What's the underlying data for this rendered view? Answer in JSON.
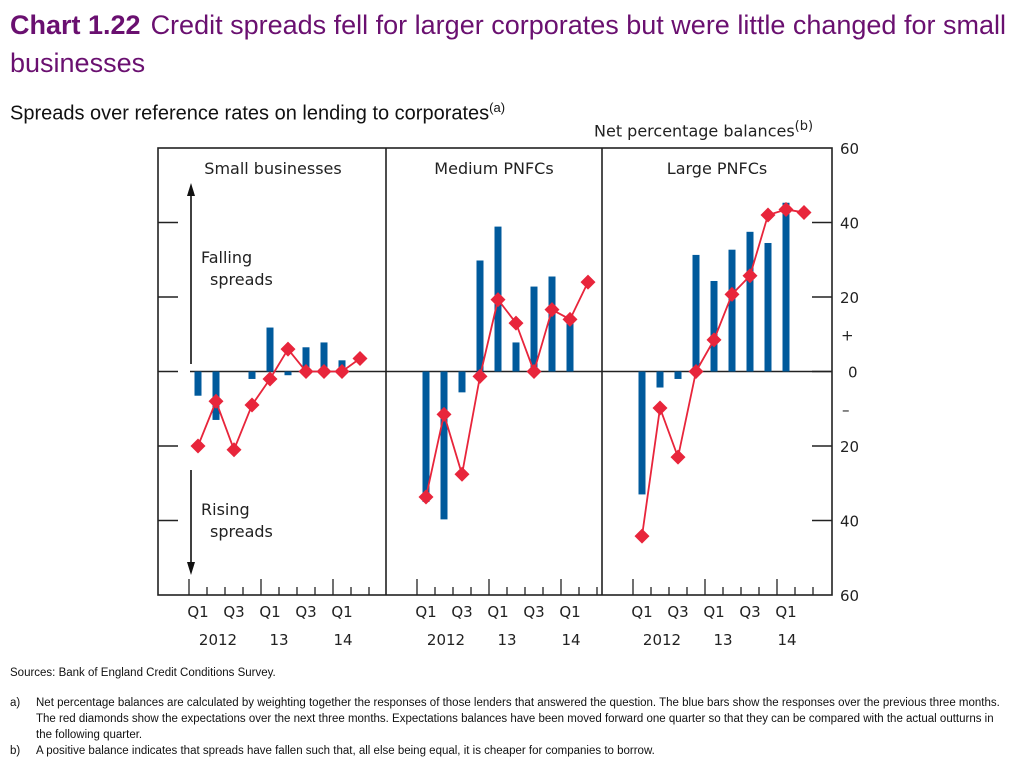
{
  "header": {
    "chart_number": "Chart 1.22",
    "title": "Credit spreads fell for larger corporates but were little changed for small businesses",
    "subtitle": "Spreads over reference rates on lending to corporates",
    "subtitle_note": "(a)",
    "unit_label": "Net percentage balances",
    "unit_note": "(b)"
  },
  "colors": {
    "title": "#6a1070",
    "bars": "#005a9c",
    "diamonds": "#e8253b",
    "axes": "#222222"
  },
  "chart_data": {
    "type": "bar",
    "title": "Credit spreads fell for larger corporates but were little changed for small businesses",
    "ylabel": "Net percentage balances",
    "ylim": [
      -60,
      60
    ],
    "y_ticks": [
      60,
      40,
      20,
      0,
      -20,
      -40,
      -60
    ],
    "y_tick_labels": [
      "60",
      "40",
      "20",
      "0",
      "20",
      "40",
      "60"
    ],
    "sign_labels": {
      "positive": "+",
      "negative": "–"
    },
    "x_quarters": [
      "2012 Q1",
      "2012 Q2",
      "2012 Q3",
      "2012 Q4",
      "2013 Q1",
      "2013 Q2",
      "2013 Q3",
      "2013 Q4",
      "2014 Q1",
      "2014 Q2"
    ],
    "x_tick_labels": [
      "Q1",
      "",
      "Q3",
      "",
      "Q1",
      "",
      "Q3",
      "",
      "Q1",
      ""
    ],
    "x_year_labels": [
      {
        "quarter_index": 1,
        "label": "2012"
      },
      {
        "quarter_index": 5,
        "label": "13"
      },
      {
        "quarter_index": 8,
        "label": "14"
      }
    ],
    "legend": {
      "bars": "Responses over the previous three months",
      "diamonds": "Expectations over the next three months (moved forward one quarter)"
    },
    "annotations": {
      "up_arrow": "Falling\nspreads",
      "down_arrow": "Rising\nspreads"
    },
    "panels": [
      {
        "name": "Small businesses",
        "series": [
          {
            "name": "Responses (bars)",
            "type": "bar",
            "values": [
              -6.5,
              -13,
              0,
              -2,
              11.8,
              -1,
              6.5,
              7.8,
              3,
              null
            ]
          },
          {
            "name": "Expectations (diamonds)",
            "type": "line",
            "values": [
              -20,
              -8,
              -21,
              -9,
              -2,
              6,
              0,
              0,
              0,
              3.5
            ]
          }
        ]
      },
      {
        "name": "Medium PNFCs",
        "series": [
          {
            "name": "Responses (bars)",
            "type": "bar",
            "values": [
              -35,
              -39.7,
              -5.6,
              29.8,
              38.9,
              7.8,
              22.8,
              25.5,
              14,
              null
            ]
          },
          {
            "name": "Expectations (diamonds)",
            "type": "line",
            "values": [
              -33.7,
              -11.5,
              -27.6,
              -1.3,
              19.3,
              13,
              0,
              16.6,
              14,
              24
            ]
          }
        ]
      },
      {
        "name": "Large PNFCs",
        "series": [
          {
            "name": "Responses (bars)",
            "type": "bar",
            "values": [
              -33,
              -4.3,
              -2,
              31.3,
              24.3,
              32.7,
              37.5,
              34.5,
              45.3,
              null
            ]
          },
          {
            "name": "Expectations (diamonds)",
            "type": "line",
            "values": [
              -44.2,
              -9.8,
              -23,
              0,
              8.5,
              20.7,
              25.7,
              42,
              43.5,
              42.7
            ]
          }
        ]
      }
    ]
  },
  "footer": {
    "sources": "Sources:  Bank of England Credit Conditions Survey.",
    "notes": [
      {
        "label": "a)",
        "text": "Net percentage balances are calculated by weighting together the responses of those lenders that answered the question.  The blue bars show the responses over the previous three months.  The red diamonds show the expectations over the next three months.  Expectations balances have been moved forward one quarter so that they can be compared with the actual outturns in the following quarter."
      },
      {
        "label": "b)",
        "text": "A positive balance indicates that spreads have fallen such that, all else being equal, it is cheaper for companies to borrow."
      }
    ]
  }
}
